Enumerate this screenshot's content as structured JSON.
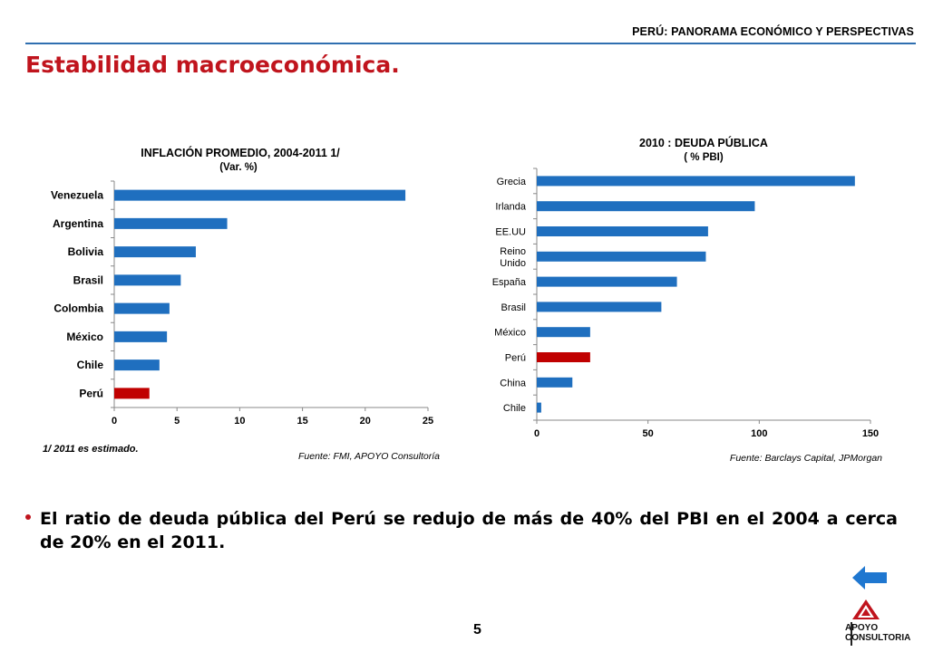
{
  "header": {
    "title": "PERÚ: PANORAMA ECONÓMICO Y PERSPECTIVAS"
  },
  "page": {
    "title": "Estabilidad macroeconómica.",
    "number": "5"
  },
  "chart_data": [
    {
      "type": "bar",
      "orientation": "horizontal",
      "title": "INFLACIÓN PROMEDIO, 2004-2011  1/",
      "subtitle": "(Var. %)",
      "categories": [
        "Venezuela",
        "Argentina",
        "Bolivia",
        "Brasil",
        "Colombia",
        "México",
        "Chile",
        "Perú"
      ],
      "values": [
        23.2,
        9.0,
        6.5,
        5.3,
        4.4,
        4.2,
        3.6,
        2.8
      ],
      "highlight": [
        "Perú"
      ],
      "xlim": [
        0,
        25
      ],
      "xticks": [
        0,
        5,
        10,
        15,
        20,
        25
      ],
      "note": "1/ 2011 es estimado.",
      "source": "Fuente: FMI, APOYO Consultoría",
      "bar_color": "#1f6fbf",
      "highlight_color": "#c00000"
    },
    {
      "type": "bar",
      "orientation": "horizontal",
      "title": "2010 :  DEUDA  PÚBLICA",
      "subtitle": "( % PBI)",
      "categories": [
        "Grecia",
        "Irlanda",
        "EE.UU",
        "Reino Unido",
        "España",
        "Brasil",
        "México",
        "Perú",
        "China",
        "Chile"
      ],
      "values": [
        143,
        98,
        77,
        76,
        63,
        56,
        24,
        24,
        16,
        2
      ],
      "highlight": [
        "Perú"
      ],
      "xlim": [
        0,
        150
      ],
      "xticks": [
        0,
        50,
        100,
        150
      ],
      "source": "Fuente:  Barclays Capital, JPMorgan",
      "bar_color": "#1f6fbf",
      "highlight_color": "#c00000"
    }
  ],
  "bullet": {
    "text": "El ratio de deuda pública del Perú se redujo de más de 40% del PBI en el 2004 a cerca de 20% en el 2011."
  },
  "logo": {
    "line1": "APOYO",
    "line2": "CONSULTORIA"
  },
  "colors": {
    "accent": "#c0141d",
    "rule": "#2f6fb0",
    "back_arrow": "#1f77d0"
  },
  "icons": {
    "back": "arrow-left-icon",
    "logo": "apoyo-logo-icon"
  }
}
